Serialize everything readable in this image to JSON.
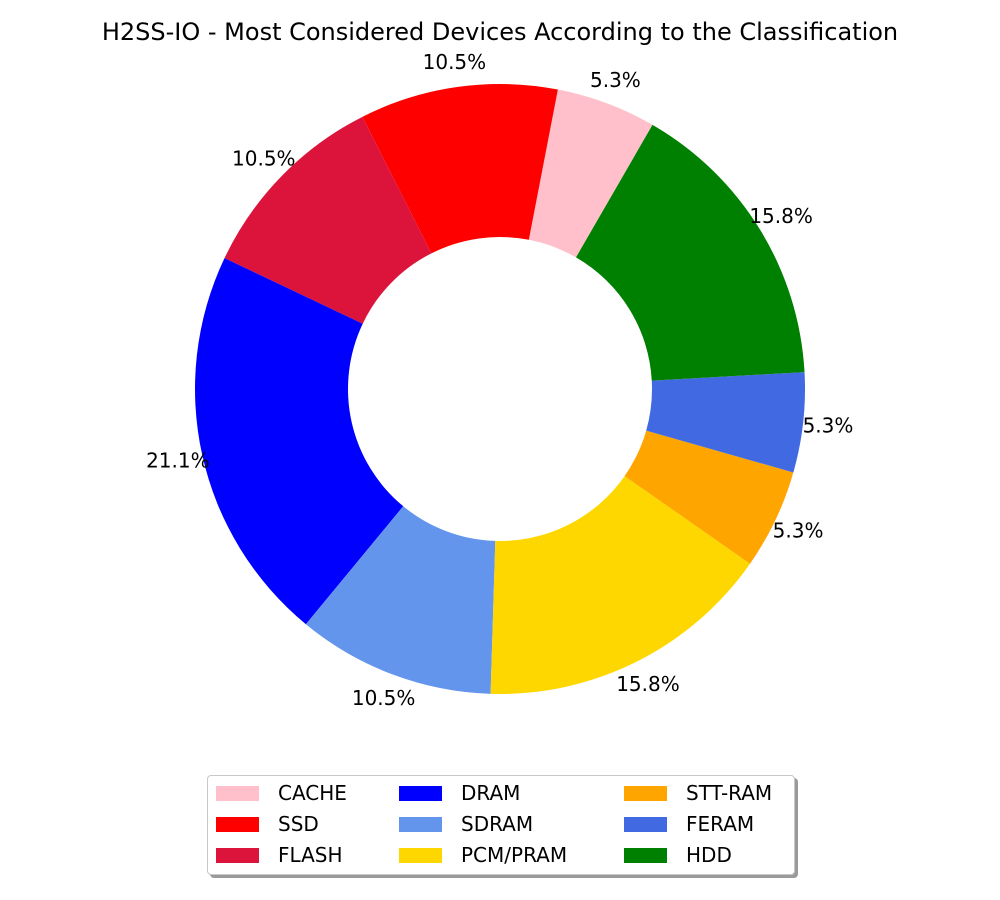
{
  "chart_data": {
    "type": "pie",
    "style": "donut",
    "title": "H2SS-IO - Most Considered Devices According to the Classification",
    "legend_position": "bottom",
    "slices": [
      {
        "label": "CACHE",
        "value": 5.3,
        "pct_label": "5.3%",
        "color": "#ffc0cb"
      },
      {
        "label": "SSD",
        "value": 10.5,
        "pct_label": "10.5%",
        "color": "#ff0000"
      },
      {
        "label": "FLASH",
        "value": 10.5,
        "pct_label": "10.5%",
        "color": "#dc143c"
      },
      {
        "label": "DRAM",
        "value": 21.1,
        "pct_label": "21.1%",
        "color": "#0000ff"
      },
      {
        "label": "SDRAM",
        "value": 10.5,
        "pct_label": "10.5%",
        "color": "#6495ed"
      },
      {
        "label": "PCM/PRAM",
        "value": 15.8,
        "pct_label": "15.8%",
        "color": "#ffd700"
      },
      {
        "label": "STT-RAM",
        "value": 5.3,
        "pct_label": "5.3%",
        "color": "#ffa500"
      },
      {
        "label": "FERAM",
        "value": 5.3,
        "pct_label": "5.3%",
        "color": "#4169e1"
      },
      {
        "label": "HDD",
        "value": 15.8,
        "pct_label": "15.8%",
        "color": "#008000"
      }
    ]
  }
}
